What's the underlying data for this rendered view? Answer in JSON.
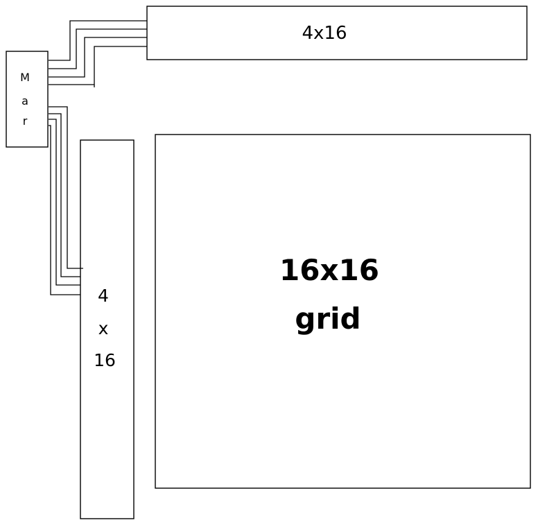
{
  "diagram": {
    "controller": {
      "letters": [
        "M",
        "a",
        "r"
      ]
    },
    "top_array": {
      "label": "4x16"
    },
    "side_array": {
      "label_lines": [
        "4",
        "x",
        "16"
      ]
    },
    "main_grid": {
      "label_lines": [
        "16x16",
        "grid"
      ]
    }
  }
}
